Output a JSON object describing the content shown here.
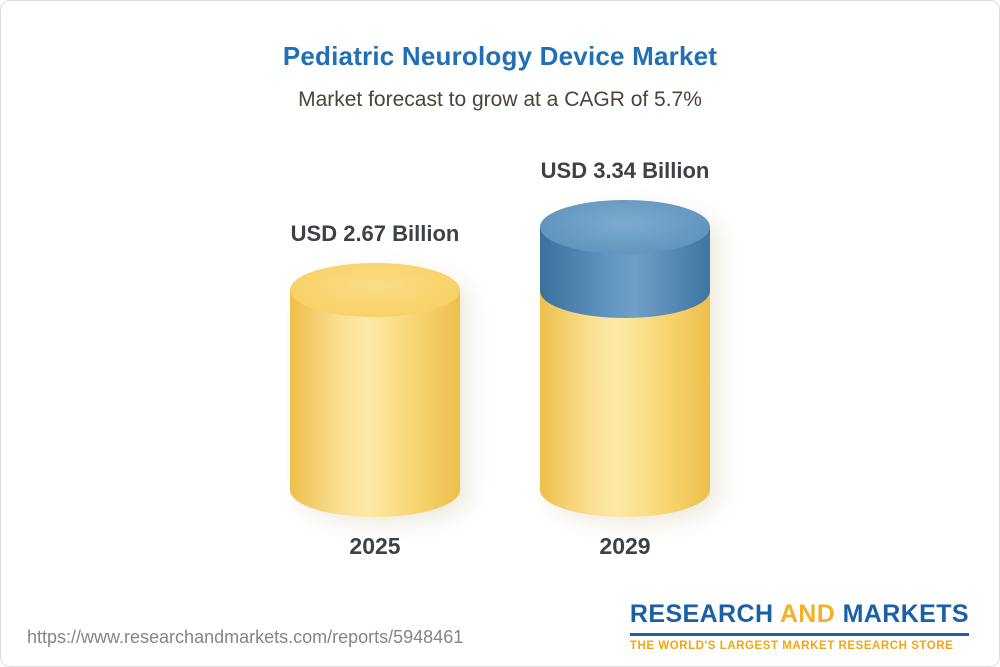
{
  "header": {
    "title": "Pediatric Neurology Device Market",
    "subtitle": "Market forecast to grow at a CAGR of 5.7%"
  },
  "chart_data": {
    "type": "bar",
    "variant": "3d-cylinder",
    "title": "Pediatric Neurology Device Market",
    "subtitle": "Market forecast to grow at a CAGR of 5.7%",
    "categories": [
      "2025",
      "2029"
    ],
    "values": [
      2.67,
      3.34
    ],
    "value_labels": [
      "USD 2.67 Billion",
      "USD 3.34 Billion"
    ],
    "unit": "USD Billion",
    "cagr_pct": 5.7,
    "series": [
      {
        "name": "Market size",
        "values": [
          2.67,
          3.34
        ]
      }
    ],
    "growth_segment": {
      "from": 2.67,
      "to": 3.34,
      "color": "#4a7fae"
    },
    "bar_color": "#f8d169",
    "ylim": [
      0,
      3.34
    ],
    "grid": false,
    "legend": false
  },
  "footer": {
    "url": "https://www.researchandmarkets.com/reports/5948461",
    "logo": {
      "word1": "RESEARCH",
      "word2": "AND",
      "word3": "MARKETS",
      "tagline": "THE WORLD'S LARGEST MARKET RESEARCH STORE",
      "colors": {
        "blue": "#1b5fa5",
        "gold": "#f3b12a"
      }
    }
  }
}
